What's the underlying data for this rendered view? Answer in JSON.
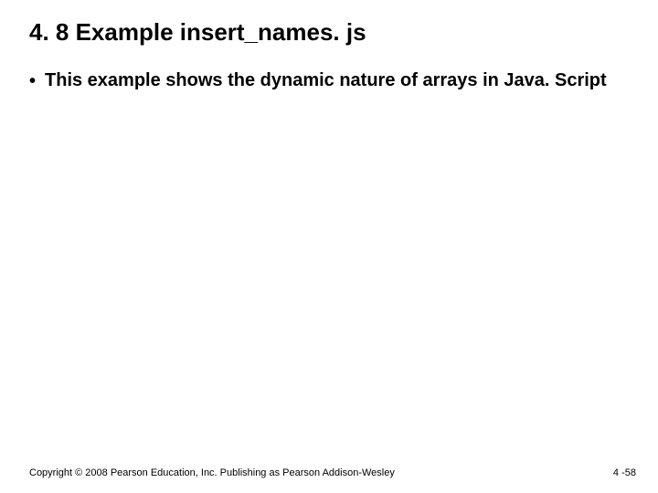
{
  "slide": {
    "title": "4. 8 Example insert_names. js",
    "title_fontsize": 26,
    "title_fontweight": "bold",
    "title_color": "#000000",
    "bullets": [
      {
        "marker": "•",
        "text": "This example shows the dynamic nature of arrays in Java. Script"
      }
    ],
    "bullet_fontsize": 20,
    "bullet_fontweight": "bold",
    "bullet_color": "#000000",
    "footer_left": "Copyright © 2008 Pearson Education, Inc. Publishing as Pearson Addison-Wesley",
    "footer_right": "4 -58",
    "footer_fontsize": 11,
    "footer_color": "#000000",
    "background_color": "#ffffff"
  }
}
